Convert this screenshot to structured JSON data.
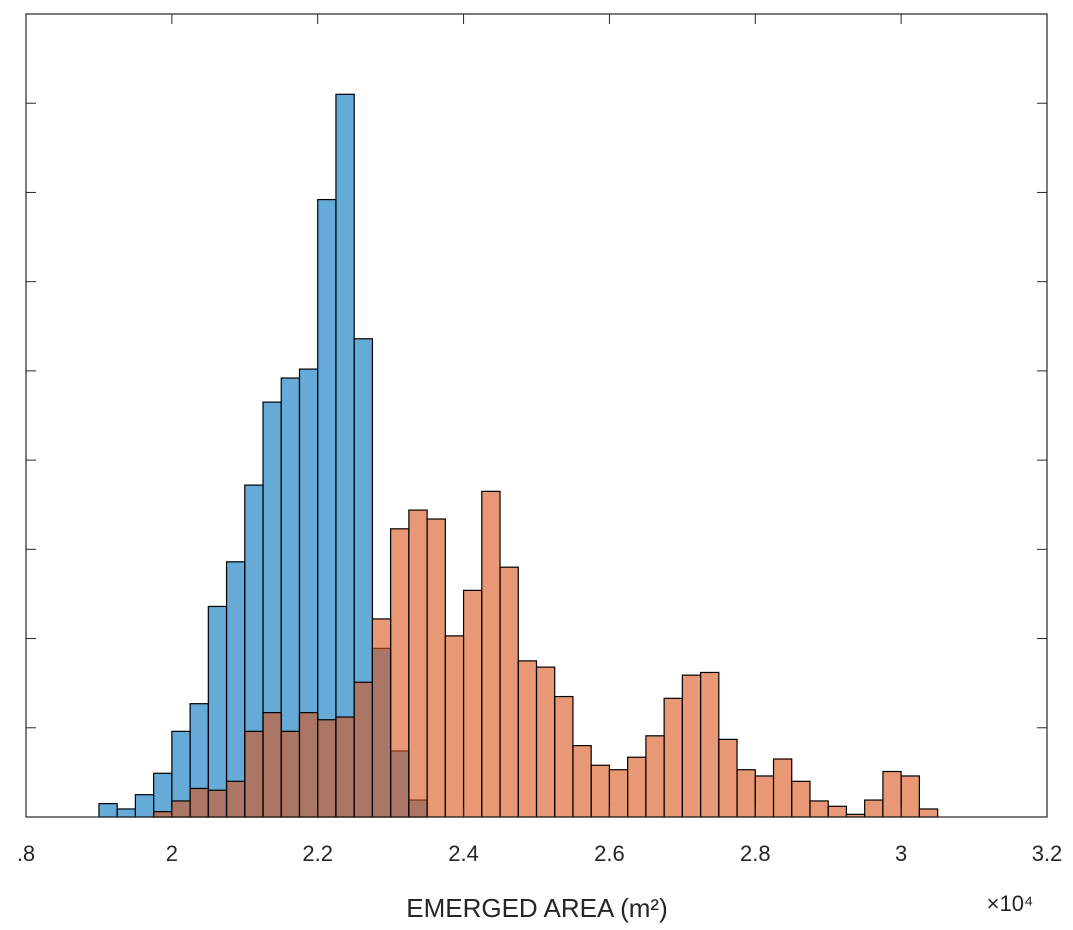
{
  "chart_data": {
    "type": "histogram",
    "x_label": "EMERGED AREA (m²)",
    "x_exponent": "×10⁴",
    "xlim": [
      1.8,
      3.2
    ],
    "xticks": [
      {
        "value": 1.8,
        "label": ".8"
      },
      2,
      2.2,
      2.4,
      2.6,
      2.8,
      3,
      3.2
    ],
    "ylim": [
      0,
      90
    ],
    "yticks": [
      0,
      10,
      20,
      30,
      40,
      50,
      60,
      70,
      80,
      90
    ],
    "series": [
      {
        "color": "#0072bd",
        "opacity": 0.6,
        "bins": [
          1.9,
          1.925,
          1.95,
          1.975,
          2.0,
          2.025,
          2.05,
          2.075,
          2.1,
          2.125,
          2.15,
          2.175,
          2.2,
          2.225,
          2.25,
          2.275,
          2.3,
          2.325,
          2.35
        ],
        "counts": [
          1.5,
          0.9,
          2.5,
          4.9,
          9.6,
          12.7,
          23.6,
          28.6,
          37.2,
          46.5,
          49.2,
          50.2,
          69.2,
          81.0,
          53.6,
          18.9,
          7.4,
          1.9
        ]
      },
      {
        "color": "#d95319",
        "opacity": 0.6,
        "bins": [
          1.975,
          2.0,
          2.025,
          2.05,
          2.075,
          2.1,
          2.125,
          2.15,
          2.175,
          2.2,
          2.225,
          2.25,
          2.275,
          2.3,
          2.325,
          2.35,
          2.375,
          2.4,
          2.425,
          2.45,
          2.475,
          2.5,
          2.525,
          2.55,
          2.575,
          2.6,
          2.625,
          2.65,
          2.675,
          2.7,
          2.725,
          2.75,
          2.775,
          2.8,
          2.825,
          2.85,
          2.875,
          2.9,
          2.925,
          2.95,
          2.975,
          3.0,
          3.025,
          3.05
        ],
        "counts": [
          0.6,
          1.8,
          3.2,
          3.0,
          4.0,
          9.6,
          11.7,
          9.6,
          11.7,
          10.9,
          11.2,
          15.1,
          22.2,
          32.3,
          34.4,
          33.4,
          20.3,
          25.4,
          36.5,
          28.0,
          17.5,
          16.8,
          13.5,
          8.0,
          5.8,
          5.3,
          6.7,
          9.1,
          13.3,
          15.9,
          16.2,
          8.7,
          5.3,
          4.6,
          6.5,
          4.0,
          1.8,
          1.2,
          0.3,
          1.9,
          5.1,
          4.6,
          0.9
        ]
      }
    ]
  }
}
